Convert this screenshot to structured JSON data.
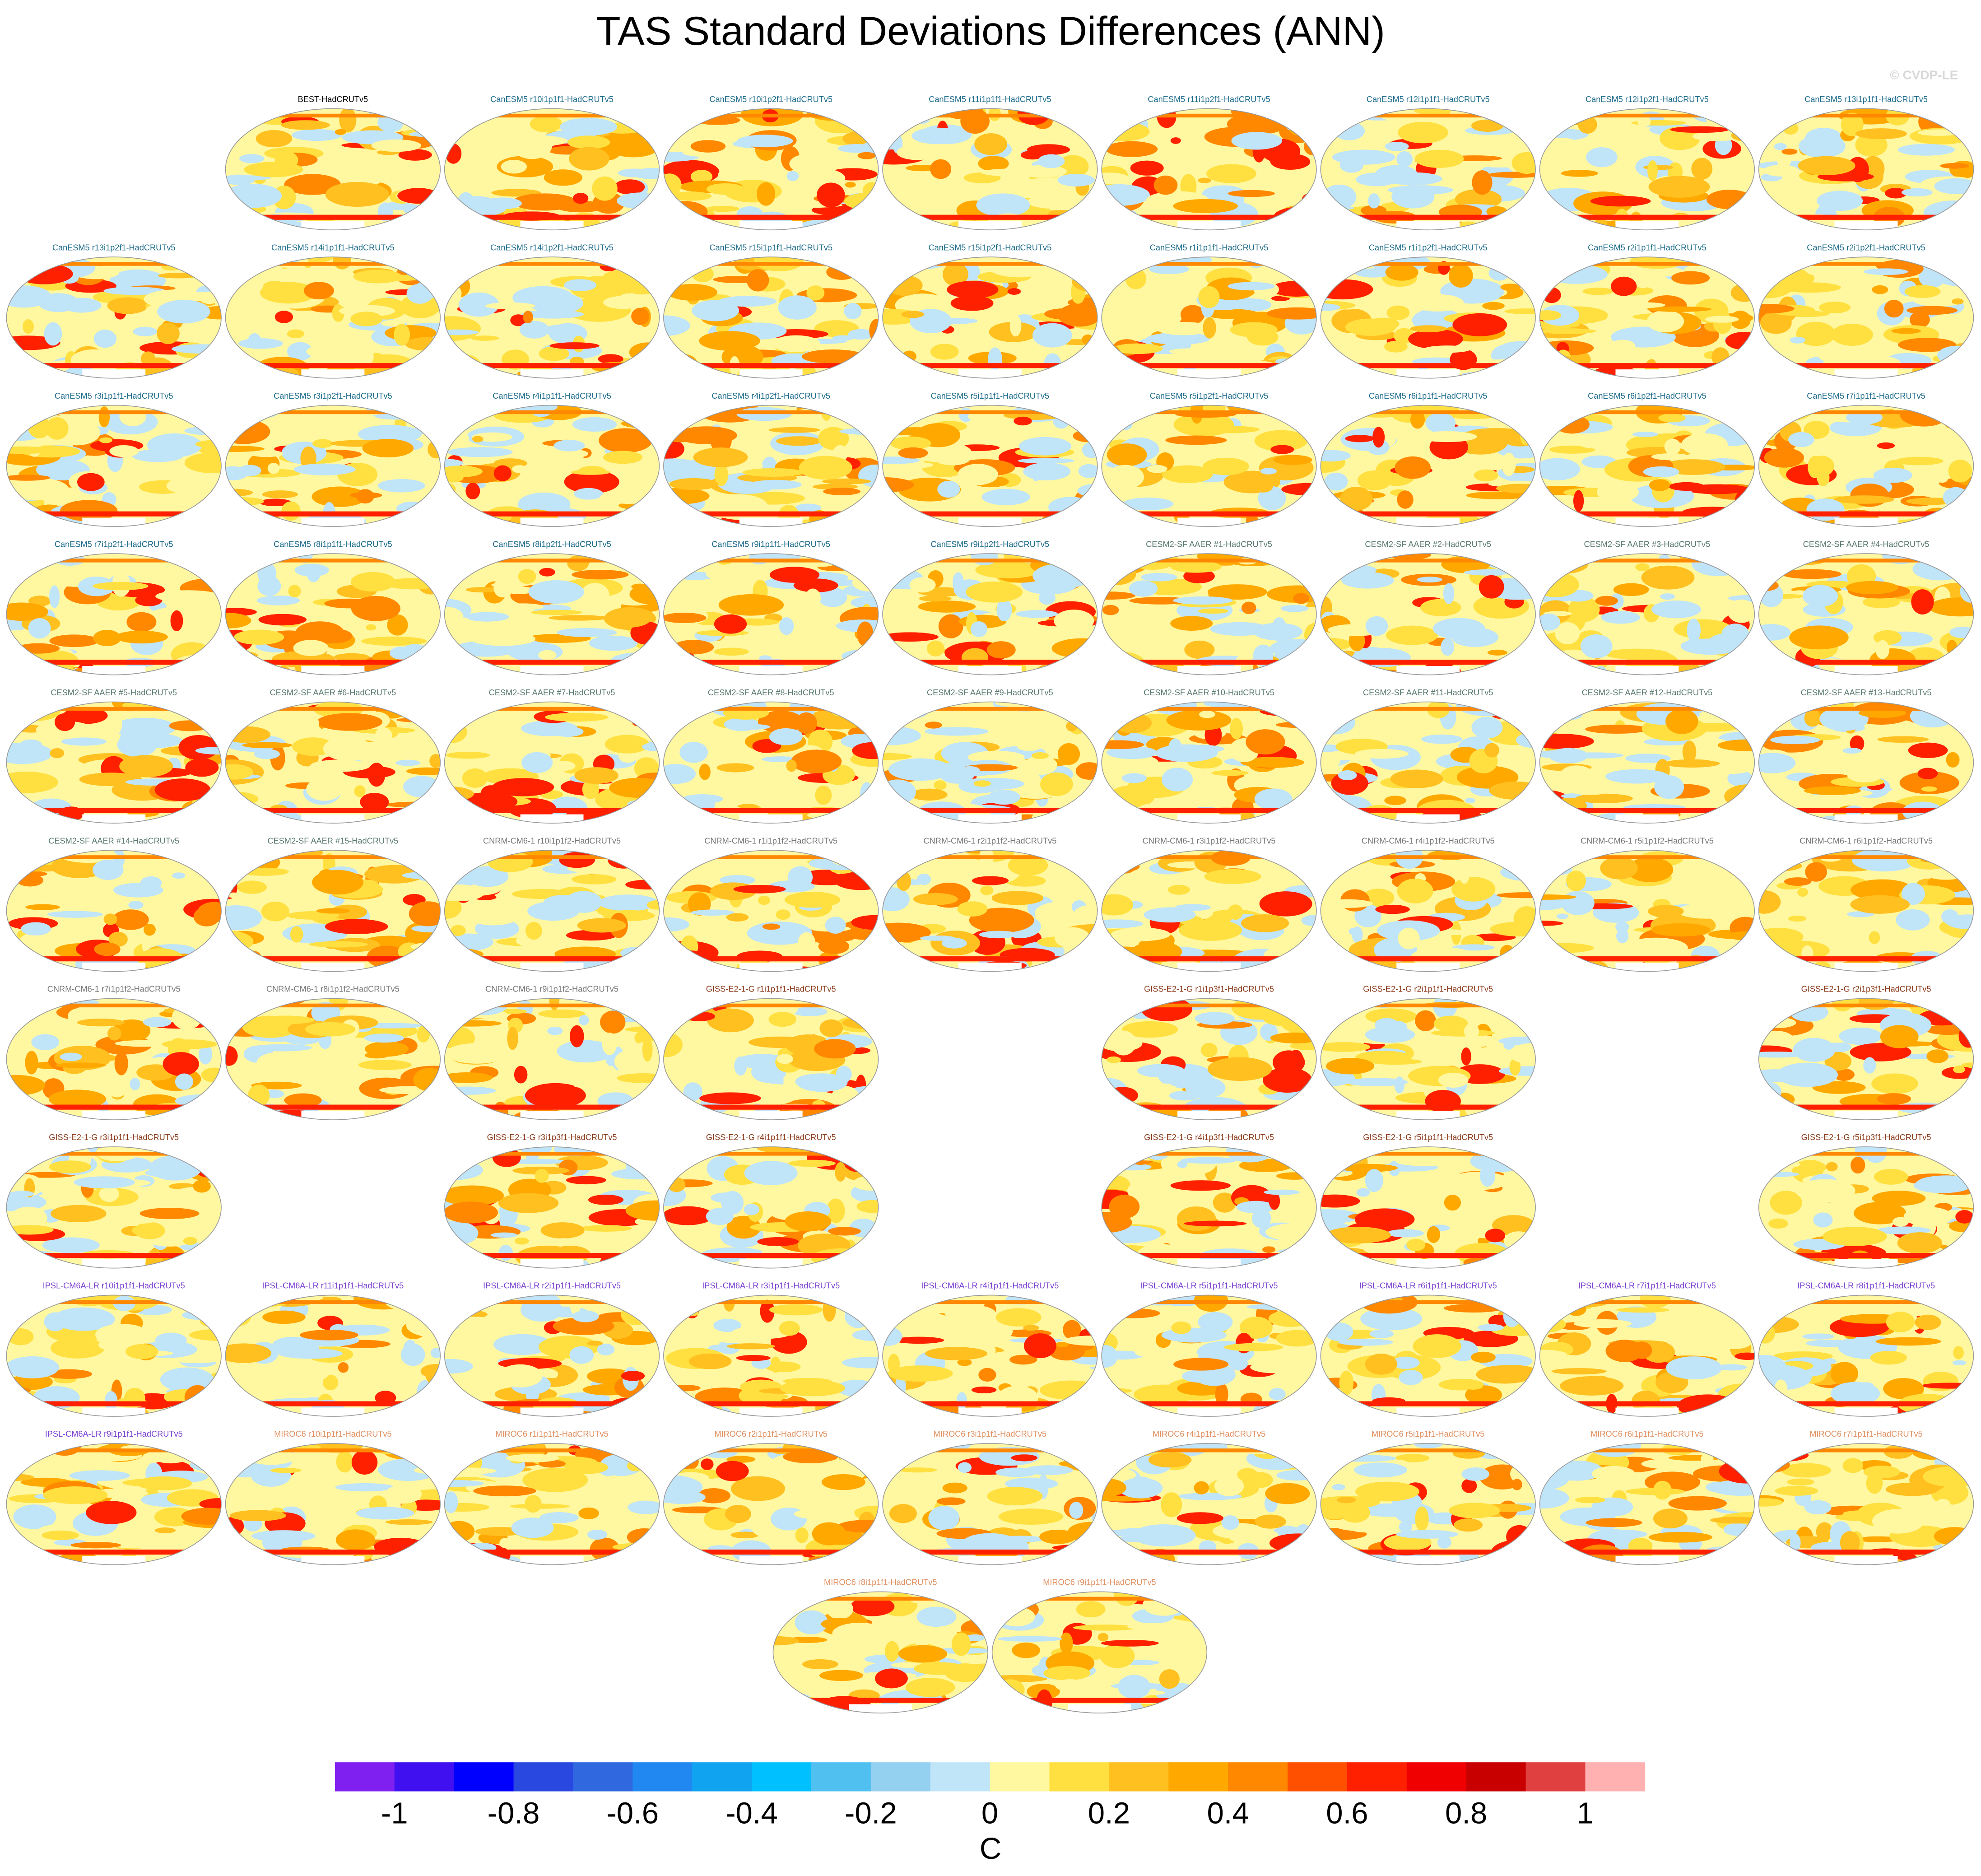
{
  "chart_data": {
    "type": "map-grid",
    "title": "TAS Standard Deviations Differences (ANN)",
    "watermark": "© CVDP-LE",
    "panels": [
      [
        null,
        {
          "title": "BEST-HadCRUTv5",
          "color": "#000000"
        },
        {
          "title": "CanESM5 r10i1p1f1-HadCRUTv5",
          "color": "#1a6a8a"
        },
        {
          "title": "CanESM5 r10i1p2f1-HadCRUTv5",
          "color": "#1a6a8a"
        },
        {
          "title": "CanESM5 r11i1p1f1-HadCRUTv5",
          "color": "#1a6a8a"
        },
        {
          "title": "CanESM5 r11i1p2f1-HadCRUTv5",
          "color": "#1a6a8a"
        },
        {
          "title": "CanESM5 r12i1p1f1-HadCRUTv5",
          "color": "#1a6a8a"
        },
        {
          "title": "CanESM5 r12i1p2f1-HadCRUTv5",
          "color": "#1a6a8a"
        },
        {
          "title": "CanESM5 r13i1p1f1-HadCRUTv5",
          "color": "#1a6a8a"
        }
      ],
      [
        {
          "title": "CanESM5 r13i1p2f1-HadCRUTv5",
          "color": "#1a6a8a"
        },
        {
          "title": "CanESM5 r14i1p1f1-HadCRUTv5",
          "color": "#1a6a8a"
        },
        {
          "title": "CanESM5 r14i1p2f1-HadCRUTv5",
          "color": "#1a6a8a"
        },
        {
          "title": "CanESM5 r15i1p1f1-HadCRUTv5",
          "color": "#1a6a8a"
        },
        {
          "title": "CanESM5 r15i1p2f1-HadCRUTv5",
          "color": "#1a6a8a"
        },
        {
          "title": "CanESM5 r1i1p1f1-HadCRUTv5",
          "color": "#1a6a8a"
        },
        {
          "title": "CanESM5 r1i1p2f1-HadCRUTv5",
          "color": "#1a6a8a"
        },
        {
          "title": "CanESM5 r2i1p1f1-HadCRUTv5",
          "color": "#1a6a8a"
        },
        {
          "title": "CanESM5 r2i1p2f1-HadCRUTv5",
          "color": "#1a6a8a"
        }
      ],
      [
        {
          "title": "CanESM5 r3i1p1f1-HadCRUTv5",
          "color": "#1a6a8a"
        },
        {
          "title": "CanESM5 r3i1p2f1-HadCRUTv5",
          "color": "#1a6a8a"
        },
        {
          "title": "CanESM5 r4i1p1f1-HadCRUTv5",
          "color": "#1a6a8a"
        },
        {
          "title": "CanESM5 r4i1p2f1-HadCRUTv5",
          "color": "#1a6a8a"
        },
        {
          "title": "CanESM5 r5i1p1f1-HadCRUTv5",
          "color": "#1a6a8a"
        },
        {
          "title": "CanESM5 r5i1p2f1-HadCRUTv5",
          "color": "#1a6a8a"
        },
        {
          "title": "CanESM5 r6i1p1f1-HadCRUTv5",
          "color": "#1a6a8a"
        },
        {
          "title": "CanESM5 r6i1p2f1-HadCRUTv5",
          "color": "#1a6a8a"
        },
        {
          "title": "CanESM5 r7i1p1f1-HadCRUTv5",
          "color": "#1a6a8a"
        }
      ],
      [
        {
          "title": "CanESM5 r7i1p2f1-HadCRUTv5",
          "color": "#1a6a8a"
        },
        {
          "title": "CanESM5 r8i1p1f1-HadCRUTv5",
          "color": "#1a6a8a"
        },
        {
          "title": "CanESM5 r8i1p2f1-HadCRUTv5",
          "color": "#1a6a8a"
        },
        {
          "title": "CanESM5 r9i1p1f1-HadCRUTv5",
          "color": "#1a6a8a"
        },
        {
          "title": "CanESM5 r9i1p2f1-HadCRUTv5",
          "color": "#1a6a8a"
        },
        {
          "title": "CESM2-SF AAER #1-HadCRUTv5",
          "color": "#5a7a70"
        },
        {
          "title": "CESM2-SF AAER #2-HadCRUTv5",
          "color": "#5a7a70"
        },
        {
          "title": "CESM2-SF AAER #3-HadCRUTv5",
          "color": "#5a7a70"
        },
        {
          "title": "CESM2-SF AAER #4-HadCRUTv5",
          "color": "#5a7a70"
        }
      ],
      [
        {
          "title": "CESM2-SF AAER #5-HadCRUTv5",
          "color": "#5a7a70"
        },
        {
          "title": "CESM2-SF AAER #6-HadCRUTv5",
          "color": "#5a7a70"
        },
        {
          "title": "CESM2-SF AAER #7-HadCRUTv5",
          "color": "#5a7a70"
        },
        {
          "title": "CESM2-SF AAER #8-HadCRUTv5",
          "color": "#5a7a70"
        },
        {
          "title": "CESM2-SF AAER #9-HadCRUTv5",
          "color": "#5a7a70"
        },
        {
          "title": "CESM2-SF AAER #10-HadCRUTv5",
          "color": "#5a7a70"
        },
        {
          "title": "CESM2-SF AAER #11-HadCRUTv5",
          "color": "#5a7a70"
        },
        {
          "title": "CESM2-SF AAER #12-HadCRUTv5",
          "color": "#5a7a70"
        },
        {
          "title": "CESM2-SF AAER #13-HadCRUTv5",
          "color": "#5a7a70"
        }
      ],
      [
        {
          "title": "CESM2-SF AAER #14-HadCRUTv5",
          "color": "#5a7a70"
        },
        {
          "title": "CESM2-SF AAER #15-HadCRUTv5",
          "color": "#5a7a70"
        },
        {
          "title": "CNRM-CM6-1 r10i1p1f2-HadCRUTv5",
          "color": "#777777"
        },
        {
          "title": "CNRM-CM6-1 r1i1p1f2-HadCRUTv5",
          "color": "#777777"
        },
        {
          "title": "CNRM-CM6-1 r2i1p1f2-HadCRUTv5",
          "color": "#777777"
        },
        {
          "title": "CNRM-CM6-1 r3i1p1f2-HadCRUTv5",
          "color": "#777777"
        },
        {
          "title": "CNRM-CM6-1 r4i1p1f2-HadCRUTv5",
          "color": "#777777"
        },
        {
          "title": "CNRM-CM6-1 r5i1p1f2-HadCRUTv5",
          "color": "#777777"
        },
        {
          "title": "CNRM-CM6-1 r6i1p1f2-HadCRUTv5",
          "color": "#777777"
        }
      ],
      [
        {
          "title": "CNRM-CM6-1 r7i1p1f2-HadCRUTv5",
          "color": "#777777"
        },
        {
          "title": "CNRM-CM6-1 r8i1p1f2-HadCRUTv5",
          "color": "#777777"
        },
        {
          "title": "CNRM-CM6-1 r9i1p1f2-HadCRUTv5",
          "color": "#777777"
        },
        {
          "title": "GISS-E2-1-G r1i1p1f1-HadCRUTv5",
          "color": "#8b3a1a"
        },
        null,
        {
          "title": "GISS-E2-1-G r1i1p3f1-HadCRUTv5",
          "color": "#8b3a1a"
        },
        {
          "title": "GISS-E2-1-G r2i1p1f1-HadCRUTv5",
          "color": "#8b3a1a"
        },
        null,
        {
          "title": "GISS-E2-1-G r2i1p3f1-HadCRUTv5",
          "color": "#8b3a1a"
        }
      ],
      [
        {
          "title": "GISS-E2-1-G r3i1p1f1-HadCRUTv5",
          "color": "#8b3a1a"
        },
        null,
        {
          "title": "GISS-E2-1-G r3i1p3f1-HadCRUTv5",
          "color": "#8b3a1a"
        },
        {
          "title": "GISS-E2-1-G r4i1p1f1-HadCRUTv5",
          "color": "#8b3a1a"
        },
        null,
        {
          "title": "GISS-E2-1-G r4i1p3f1-HadCRUTv5",
          "color": "#8b3a1a"
        },
        {
          "title": "GISS-E2-1-G r5i1p1f1-HadCRUTv5",
          "color": "#8b3a1a"
        },
        null,
        {
          "title": "GISS-E2-1-G r5i1p3f1-HadCRUTv5",
          "color": "#8b3a1a"
        }
      ],
      [
        {
          "title": "IPSL-CM6A-LR r10i1p1f1-HadCRUTv5",
          "color": "#7a40d0"
        },
        {
          "title": "IPSL-CM6A-LR r11i1p1f1-HadCRUTv5",
          "color": "#7a40d0"
        },
        {
          "title": "IPSL-CM6A-LR r2i1p1f1-HadCRUTv5",
          "color": "#7a40d0"
        },
        {
          "title": "IPSL-CM6A-LR r3i1p1f1-HadCRUTv5",
          "color": "#7a40d0"
        },
        {
          "title": "IPSL-CM6A-LR r4i1p1f1-HadCRUTv5",
          "color": "#7a40d0"
        },
        {
          "title": "IPSL-CM6A-LR r5i1p1f1-HadCRUTv5",
          "color": "#7a40d0"
        },
        {
          "title": "IPSL-CM6A-LR r6i1p1f1-HadCRUTv5",
          "color": "#7a40d0"
        },
        {
          "title": "IPSL-CM6A-LR r7i1p1f1-HadCRUTv5",
          "color": "#7a40d0"
        },
        {
          "title": "IPSL-CM6A-LR r8i1p1f1-HadCRUTv5",
          "color": "#7a40d0"
        }
      ],
      [
        {
          "title": "IPSL-CM6A-LR r9i1p1f1-HadCRUTv5",
          "color": "#7a40d0"
        },
        {
          "title": "MIROC6 r10i1p1f1-HadCRUTv5",
          "color": "#e09060"
        },
        {
          "title": "MIROC6 r1i1p1f1-HadCRUTv5",
          "color": "#e09060"
        },
        {
          "title": "MIROC6 r2i1p1f1-HadCRUTv5",
          "color": "#e09060"
        },
        {
          "title": "MIROC6 r3i1p1f1-HadCRUTv5",
          "color": "#e09060"
        },
        {
          "title": "MIROC6 r4i1p1f1-HadCRUTv5",
          "color": "#e09060"
        },
        {
          "title": "MIROC6 r5i1p1f1-HadCRUTv5",
          "color": "#e09060"
        },
        {
          "title": "MIROC6 r6i1p1f1-HadCRUTv5",
          "color": "#e09060"
        },
        {
          "title": "MIROC6 r7i1p1f1-HadCRUTv5",
          "color": "#e09060"
        }
      ],
      [
        {
          "title": "MIROC6 r8i1p1f1-HadCRUTv5",
          "color": "#e09060"
        },
        {
          "title": "MIROC6 r9i1p1f1-HadCRUTv5",
          "color": "#e09060"
        }
      ]
    ],
    "colorbar": {
      "levels": [
        -1,
        -0.9,
        -0.8,
        -0.7,
        -0.6,
        -0.5,
        -0.4,
        -0.3,
        -0.2,
        -0.1,
        0,
        0.1,
        0.2,
        0.3,
        0.4,
        0.5,
        0.6,
        0.7,
        0.8,
        0.9,
        1
      ],
      "colors": [
        "#8020f0",
        "#4010f0",
        "#0000ff",
        "#2848e0",
        "#3068e0",
        "#2088f0",
        "#10a4f0",
        "#00c0ff",
        "#50c0f0",
        "#94d0f0",
        "#c0e4f8",
        "#fff8a0",
        "#ffe040",
        "#ffc020",
        "#ffa800",
        "#ff8800",
        "#ff5000",
        "#ff2000",
        "#f00000",
        "#c80000",
        "#e04040",
        "#ffb0b0"
      ],
      "ticks": [
        -1,
        -0.8,
        -0.6,
        -0.4,
        -0.2,
        0,
        0.2,
        0.4,
        0.6,
        0.8,
        1
      ],
      "label": "C"
    }
  }
}
